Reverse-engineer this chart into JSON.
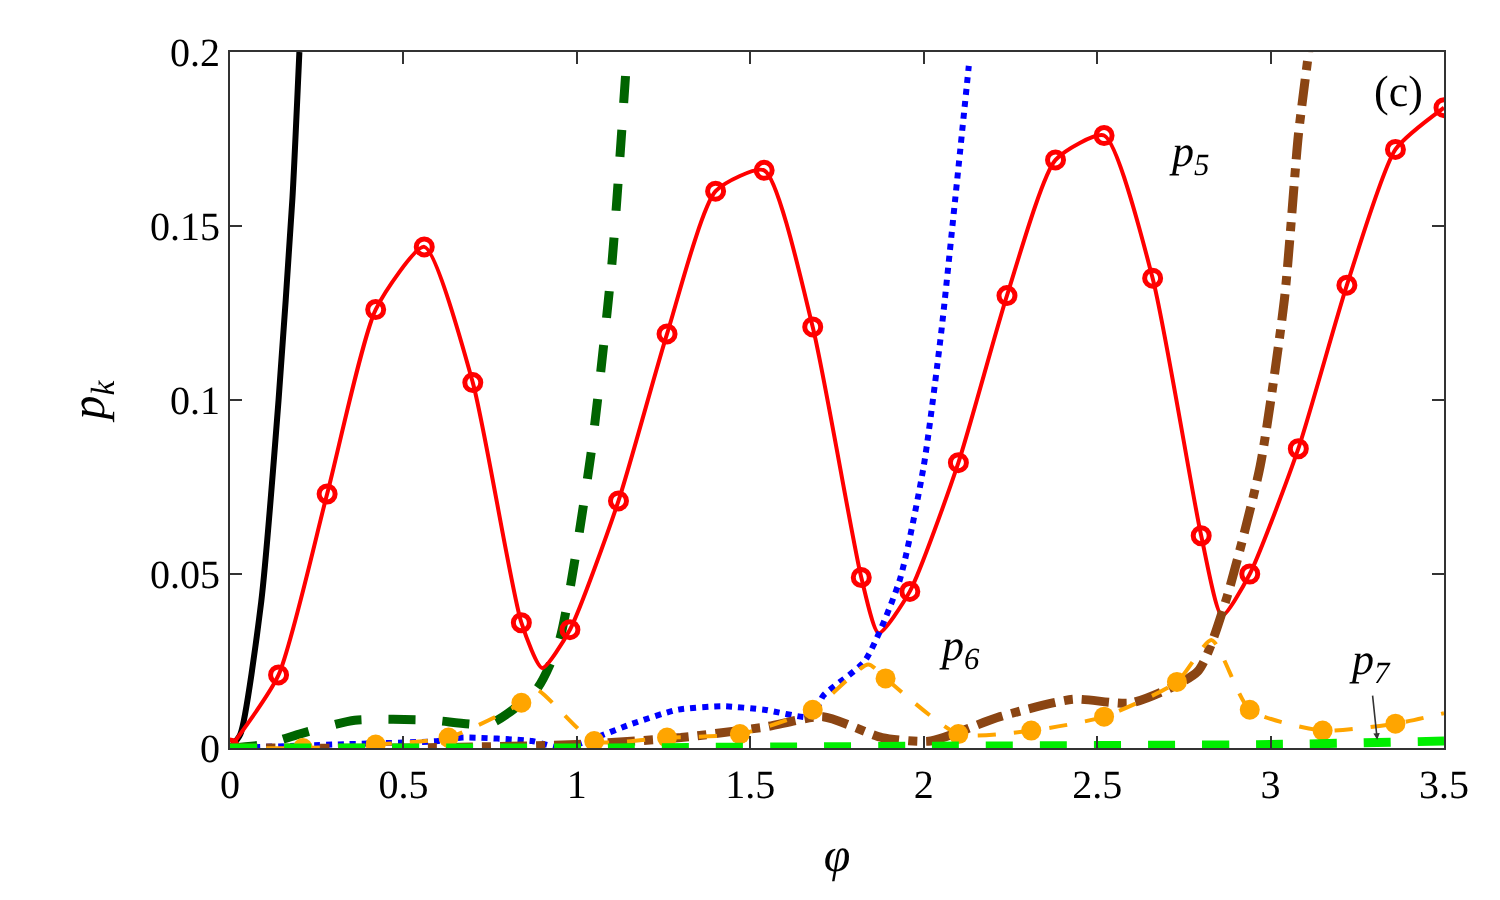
{
  "chart_data": {
    "type": "line",
    "xlabel": "φ",
    "ylabel": "p$_{k}$",
    "xlim": [
      0,
      3.5
    ],
    "ylim": [
      0,
      0.2
    ],
    "xticks": [
      0,
      0.5,
      1,
      1.5,
      2,
      2.5,
      3,
      3.5
    ],
    "yticks": [
      0,
      0.05,
      0.1,
      0.15,
      0.2
    ],
    "series": [
      {
        "color": "#000000",
        "line_style": "solid",
        "x": [
          0,
          0.03,
          0.09,
          0.14,
          0.18,
          0.2
        ],
        "values": [
          0,
          0.004,
          0.042,
          0.1,
          0.158,
          0.2
        ]
      },
      {
        "color": "#006400",
        "line_style": "dashed",
        "x": [
          0,
          0.1,
          0.2,
          0.36,
          0.58,
          0.75,
          0.885,
          0.95,
          1.04,
          1.1,
          1.145
        ],
        "values": [
          0,
          0.001,
          0.004,
          0.008,
          0.008,
          0.007,
          0.017,
          0.031,
          0.084,
          0.138,
          0.2
        ]
      },
      {
        "color": "#ff0000",
        "line_style": "solid",
        "marker": "none",
        "x": [
          0,
          0.14,
          0.28,
          0.42,
          0.56,
          0.7,
          0.84,
          0.9,
          0.98,
          1.12,
          1.26,
          1.4,
          1.54,
          1.68,
          1.82,
          1.87,
          1.96,
          2.1,
          2.24,
          2.38,
          2.52,
          2.66,
          2.8,
          2.86,
          2.94,
          3.08,
          3.22,
          3.36,
          3.5
        ],
        "values": [
          0,
          0.021,
          0.073,
          0.126,
          0.144,
          0.105,
          0.036,
          0.023,
          0.034,
          0.071,
          0.119,
          0.16,
          0.166,
          0.121,
          0.049,
          0.033,
          0.045,
          0.082,
          0.13,
          0.169,
          0.176,
          0.135,
          0.061,
          0.038,
          0.05,
          0.086,
          0.133,
          0.172,
          0.184
        ]
      },
      {
        "type": "scatter",
        "color": "#ff0000",
        "marker": "circle-open",
        "x": [
          0,
          0.14,
          0.28,
          0.42,
          0.56,
          0.7,
          0.84,
          0.98,
          1.12,
          1.26,
          1.4,
          1.54,
          1.68,
          1.82,
          1.96,
          2.1,
          2.24,
          2.38,
          2.52,
          2.66,
          2.8,
          2.94,
          3.08,
          3.22,
          3.36,
          3.5
        ],
        "values": [
          0,
          0.021,
          0.073,
          0.126,
          0.144,
          0.105,
          0.036,
          0.034,
          0.071,
          0.119,
          0.16,
          0.166,
          0.121,
          0.049,
          0.045,
          0.082,
          0.13,
          0.169,
          0.176,
          0.135,
          0.061,
          0.05,
          0.086,
          0.133,
          0.172,
          0.184
        ]
      },
      {
        "color": "#0000ff",
        "line_style": "dotted",
        "x": [
          0,
          0.3,
          0.6,
          0.67,
          0.87,
          0.96,
          1.16,
          1.29,
          1.42,
          1.54,
          1.68,
          1.71,
          1.83,
          1.93,
          2.0,
          2.05,
          2.09,
          2.13
        ],
        "values": [
          0,
          0.001,
          0.002,
          0.003,
          0.002,
          0.0,
          0.007,
          0.011,
          0.012,
          0.011,
          0.009,
          0.015,
          0.025,
          0.048,
          0.081,
          0.119,
          0.157,
          0.196
        ]
      },
      {
        "color": "#8b4513",
        "line_style": "dashdot",
        "x": [
          0,
          0.5,
          1.0,
          1.3,
          1.54,
          1.71,
          1.88,
          2.02,
          2.22,
          2.43,
          2.6,
          2.79,
          2.87,
          2.97,
          3.04,
          3.08,
          3.11
        ],
        "values": [
          0,
          0.0,
          0.001,
          0.003,
          0.006,
          0.009,
          0.003,
          0.002,
          0.009,
          0.014,
          0.013,
          0.022,
          0.042,
          0.081,
          0.129,
          0.176,
          0.2
        ]
      },
      {
        "color": "#ffa500",
        "line_style": "dashed",
        "marker": "none",
        "x": [
          0,
          0.21,
          0.42,
          0.63,
          0.84,
          0.88,
          1.05,
          1.26,
          1.47,
          1.68,
          1.84,
          1.89,
          2.1,
          2.31,
          2.52,
          2.73,
          2.83,
          2.94,
          3.15,
          3.36,
          3.5
        ],
        "values": [
          0,
          0.0,
          0.001,
          0.003,
          0.013,
          0.017,
          0.002,
          0.003,
          0.004,
          0.011,
          0.024,
          0.02,
          0.004,
          0.005,
          0.009,
          0.019,
          0.031,
          0.011,
          0.005,
          0.007,
          0.01
        ]
      },
      {
        "type": "scatter",
        "color": "#ffa500",
        "marker": "circle",
        "x": [
          0.21,
          0.42,
          0.63,
          0.84,
          1.05,
          1.26,
          1.47,
          1.68,
          1.89,
          2.1,
          2.31,
          2.52,
          2.73,
          2.94,
          3.15,
          3.36
        ],
        "values": [
          0.0,
          0.001,
          0.003,
          0.013,
          0.002,
          0.003,
          0.004,
          0.011,
          0.02,
          0.004,
          0.005,
          0.009,
          0.019,
          0.011,
          0.005,
          0.007
        ]
      },
      {
        "color": "#00ee00",
        "line_style": "dashed",
        "x": [
          0,
          1,
          2,
          3,
          3.5
        ],
        "values": [
          0,
          0.0,
          0.0005,
          0.001,
          0.002
        ]
      }
    ],
    "annotations": [
      "p$_{5}$",
      "p$_{6}$",
      "p$_{7}$",
      "(c)"
    ]
  }
}
